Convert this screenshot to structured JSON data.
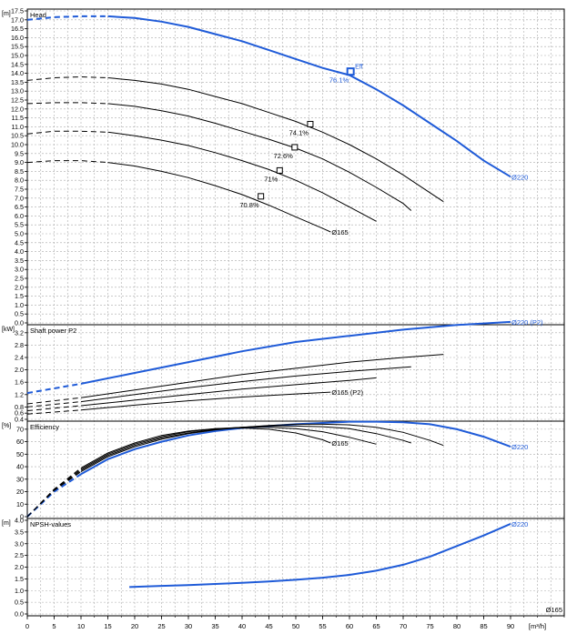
{
  "chart_data": [
    {
      "type": "line",
      "panel": "head",
      "title": "Head",
      "unit": "[m]",
      "ylim": [
        0,
        17.5
      ],
      "ytick_step": 0.5,
      "series": [
        {
          "name": "Ø220",
          "color": "#1f5bd8",
          "dashed_until": 16,
          "x": [
            0,
            5,
            10,
            15,
            20,
            25,
            30,
            35,
            40,
            45,
            50,
            55,
            60,
            65,
            70,
            75,
            80,
            85,
            90
          ],
          "y": [
            17.0,
            17.15,
            17.2,
            17.2,
            17.1,
            16.9,
            16.6,
            16.2,
            15.8,
            15.3,
            14.8,
            14.3,
            13.9,
            13.1,
            12.2,
            11.2,
            10.2,
            9.1,
            8.2
          ]
        },
        {
          "name": "",
          "color": "#000000",
          "dashed_until": 16,
          "x": [
            0,
            5,
            10,
            15,
            20,
            25,
            30,
            35,
            40,
            45,
            50,
            55,
            60,
            65,
            70,
            75,
            77.5
          ],
          "y": [
            13.6,
            13.75,
            13.8,
            13.75,
            13.6,
            13.4,
            13.1,
            12.7,
            12.3,
            11.8,
            11.3,
            10.7,
            10.0,
            9.2,
            8.3,
            7.3,
            6.8
          ]
        },
        {
          "name": "",
          "color": "#000000",
          "dashed_until": 16,
          "x": [
            0,
            5,
            10,
            15,
            20,
            25,
            30,
            35,
            40,
            45,
            50,
            55,
            60,
            65,
            70,
            71.5
          ],
          "y": [
            12.3,
            12.35,
            12.35,
            12.3,
            12.15,
            11.9,
            11.6,
            11.2,
            10.75,
            10.3,
            9.8,
            9.2,
            8.45,
            7.6,
            6.7,
            6.3
          ]
        },
        {
          "name": "",
          "color": "#000000",
          "dashed_until": 15,
          "x": [
            0,
            5,
            10,
            15,
            20,
            25,
            30,
            35,
            40,
            45,
            50,
            55,
            60,
            65
          ],
          "y": [
            10.6,
            10.75,
            10.75,
            10.7,
            10.5,
            10.25,
            9.95,
            9.55,
            9.1,
            8.6,
            8.0,
            7.3,
            6.5,
            5.7
          ]
        },
        {
          "name": "Ø165",
          "color": "#000000",
          "dashed_until": 15,
          "x": [
            0,
            5,
            10,
            15,
            20,
            25,
            30,
            35,
            40,
            45,
            50,
            55,
            56.5
          ],
          "y": [
            9.0,
            9.1,
            9.1,
            9.0,
            8.8,
            8.5,
            8.15,
            7.7,
            7.2,
            6.6,
            5.95,
            5.3,
            5.1
          ]
        }
      ],
      "markers": [
        {
          "x": 60.2,
          "y": 14.1,
          "label": "76.1%",
          "color": "#1f5bd8",
          "tag": "Eff"
        },
        {
          "x": 52.7,
          "y": 11.15,
          "label": "74.1%",
          "color": "#000000"
        },
        {
          "x": 49.8,
          "y": 9.85,
          "label": "72.6%",
          "color": "#000000"
        },
        {
          "x": 47.0,
          "y": 8.55,
          "label": "71%",
          "color": "#000000"
        },
        {
          "x": 43.5,
          "y": 7.1,
          "label": "70.8%",
          "color": "#000000"
        }
      ]
    },
    {
      "type": "line",
      "panel": "power",
      "title": "Shaft power P2",
      "unit": "[kW]",
      "ylim": [
        0.4,
        3.4
      ],
      "ytick_labels": [
        "0.4",
        "0.6",
        "0.8",
        "1.2",
        "1.6",
        "2.0",
        "2.4",
        "2.8",
        "3.2"
      ],
      "series": [
        {
          "name": "Ø220 (P2)",
          "color": "#1f5bd8",
          "dashed_until": 16,
          "x": [
            0,
            10,
            20,
            30,
            40,
            50,
            60,
            70,
            80,
            90
          ],
          "y": [
            1.25,
            1.55,
            1.9,
            2.25,
            2.6,
            2.9,
            3.1,
            3.3,
            3.45,
            3.55
          ]
        },
        {
          "name": "",
          "color": "#000000",
          "dashed_until": 16,
          "x": [
            0,
            10,
            20,
            30,
            40,
            50,
            60,
            70,
            77.5
          ],
          "y": [
            0.9,
            1.1,
            1.35,
            1.6,
            1.85,
            2.05,
            2.25,
            2.4,
            2.5
          ]
        },
        {
          "name": "",
          "color": "#000000",
          "dashed_until": 16,
          "x": [
            0,
            10,
            20,
            30,
            40,
            50,
            60,
            71.5
          ],
          "y": [
            0.8,
            0.97,
            1.2,
            1.42,
            1.62,
            1.8,
            1.95,
            2.1
          ]
        },
        {
          "name": "",
          "color": "#000000",
          "dashed_until": 15,
          "x": [
            0,
            10,
            20,
            30,
            40,
            50,
            60,
            65
          ],
          "y": [
            0.68,
            0.84,
            1.02,
            1.2,
            1.38,
            1.52,
            1.66,
            1.74
          ]
        },
        {
          "name": "Ø165 (P2)",
          "color": "#000000",
          "dashed_until": 15,
          "x": [
            0,
            10,
            20,
            30,
            40,
            50,
            56.5
          ],
          "y": [
            0.57,
            0.7,
            0.86,
            1.0,
            1.12,
            1.22,
            1.28
          ]
        }
      ]
    },
    {
      "type": "line",
      "panel": "efficiency",
      "title": "Efficiency",
      "unit": "[%]",
      "ylim": [
        0,
        75
      ],
      "ytick_step": 10,
      "series": [
        {
          "name": "Ø220",
          "color": "#1f5bd8",
          "dashed_until": 12,
          "x": [
            0,
            5,
            10,
            15,
            20,
            25,
            30,
            35,
            40,
            45,
            50,
            55,
            60,
            65,
            70,
            75,
            80,
            85,
            90
          ],
          "y": [
            0,
            20,
            34,
            46,
            54,
            60,
            65,
            68.5,
            71,
            72.5,
            74,
            75,
            76,
            76,
            75.5,
            74,
            70,
            64,
            56
          ]
        },
        {
          "name": "",
          "color": "#000000",
          "dashed_until": 12,
          "x": [
            0,
            5,
            10,
            15,
            20,
            25,
            30,
            35,
            40,
            45,
            50,
            55,
            60,
            65,
            70,
            75,
            77.5
          ],
          "y": [
            0,
            21,
            36,
            48,
            56,
            62,
            66.5,
            69.5,
            71.5,
            73,
            74,
            74,
            73.5,
            71.5,
            67.5,
            61,
            57
          ]
        },
        {
          "name": "",
          "color": "#000000",
          "dashed_until": 12,
          "x": [
            0,
            5,
            10,
            15,
            20,
            25,
            30,
            35,
            40,
            45,
            50,
            55,
            60,
            65,
            70,
            71.5
          ],
          "y": [
            0,
            21,
            37,
            49,
            57,
            63,
            67,
            70,
            71.5,
            72.5,
            72.5,
            72,
            70.5,
            66.5,
            61,
            59
          ]
        },
        {
          "name": "",
          "color": "#000000",
          "dashed_until": 12,
          "x": [
            0,
            5,
            10,
            15,
            20,
            25,
            30,
            35,
            40,
            45,
            50,
            55,
            60,
            65
          ],
          "y": [
            0,
            21.5,
            38,
            50,
            58,
            64,
            68,
            70.5,
            71.5,
            71.5,
            70.5,
            68,
            63.5,
            58
          ]
        },
        {
          "name": "Ø165",
          "color": "#000000",
          "dashed_until": 12,
          "x": [
            0,
            5,
            10,
            15,
            20,
            25,
            30,
            35,
            40,
            45,
            50,
            55,
            56.5
          ],
          "y": [
            0,
            22,
            39,
            51,
            59,
            65,
            68.5,
            70.5,
            71,
            70,
            67,
            61.5,
            59
          ]
        }
      ]
    },
    {
      "type": "line",
      "panel": "npsh",
      "title": "NPSH-values",
      "unit": "[m]",
      "ylim": [
        0,
        4
      ],
      "ytick_step": 0.5,
      "series": [
        {
          "name": "Ø220",
          "color": "#1f5bd8",
          "x": [
            19,
            25,
            30,
            35,
            40,
            45,
            50,
            55,
            60,
            65,
            70,
            75,
            80,
            85,
            90
          ],
          "y": [
            1.15,
            1.2,
            1.23,
            1.28,
            1.33,
            1.39,
            1.46,
            1.55,
            1.67,
            1.85,
            2.1,
            2.45,
            2.9,
            3.35,
            3.85
          ]
        }
      ],
      "extra_label": "Ø165"
    }
  ],
  "x_axis": {
    "unit": "[m³/h]",
    "min": 0,
    "max": 100,
    "tick_labels": [
      "0",
      "5",
      "10",
      "15",
      "20",
      "25",
      "30",
      "35",
      "40",
      "45",
      "50",
      "55",
      "60",
      "65",
      "70",
      "75",
      "80",
      "85",
      "90"
    ]
  },
  "colors": {
    "accent": "#1f5bd8",
    "curve": "#000000",
    "grid_minor": "#b8b8b8",
    "grid_major": "#8a8a8a"
  }
}
